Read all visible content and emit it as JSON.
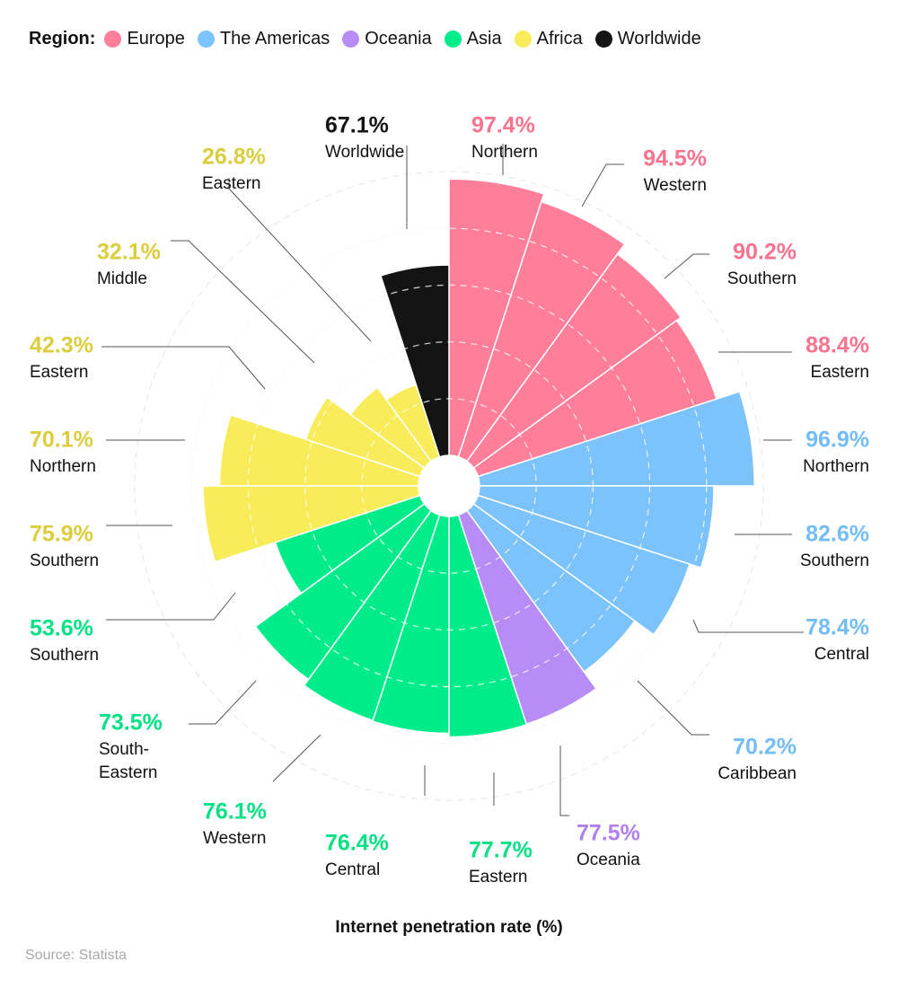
{
  "chart_data": {
    "type": "polar-bar",
    "legend_title": "Region:",
    "legend": [
      {
        "name": "Europe",
        "color": "#ff7f9a"
      },
      {
        "name": "The Americas",
        "color": "#7cc3fb"
      },
      {
        "name": "Oceania",
        "color": "#b78cf4"
      },
      {
        "name": "Asia",
        "color": "#00ec8b"
      },
      {
        "name": "Africa",
        "color": "#f9ec5a"
      },
      {
        "name": "Worldwide",
        "color": "#141414"
      }
    ],
    "label_colors": {
      "Europe": "#f9738f",
      "The Americas": "#73bdf7",
      "Oceania": "#b180f0",
      "Asia": "#00e184",
      "Africa": "#dccd3c",
      "Worldwide": "#141414"
    },
    "unit": "%",
    "categories": [
      {
        "name": "Northern",
        "region": "Europe",
        "value": 97.4,
        "value_label": "97.4%"
      },
      {
        "name": "Western",
        "region": "Europe",
        "value": 94.5,
        "value_label": "94.5%"
      },
      {
        "name": "Southern",
        "region": "Europe",
        "value": 90.2,
        "value_label": "90.2%"
      },
      {
        "name": "Eastern",
        "region": "Europe",
        "value": 88.4,
        "value_label": "88.4%"
      },
      {
        "name": "Northern",
        "region": "The Americas",
        "value": 96.9,
        "value_label": "96.9%"
      },
      {
        "name": "Southern",
        "region": "The Americas",
        "value": 82.6,
        "value_label": "82.6%"
      },
      {
        "name": "Central",
        "region": "The Americas",
        "value": 78.4,
        "value_label": "78.4%"
      },
      {
        "name": "Caribbean",
        "region": "The Americas",
        "value": 70.2,
        "value_label": "70.2%"
      },
      {
        "name": "Oceania",
        "region": "Oceania",
        "value": 77.5,
        "value_label": "77.5%"
      },
      {
        "name": "Eastern",
        "region": "Asia",
        "value": 77.7,
        "value_label": "77.7%"
      },
      {
        "name": "Central",
        "region": "Asia",
        "value": 76.4,
        "value_label": "76.4%"
      },
      {
        "name": "Western",
        "region": "Asia",
        "value": 76.1,
        "value_label": "76.1%"
      },
      {
        "name": "South-Eastern",
        "region": "Asia",
        "value": 73.5,
        "value_label": "73.5%",
        "name_lines": [
          "South-",
          "Eastern"
        ]
      },
      {
        "name": "Southern",
        "region": "Asia",
        "value": 53.6,
        "value_label": "53.6%"
      },
      {
        "name": "Southern",
        "region": "Africa",
        "value": 75.9,
        "value_label": "75.9%"
      },
      {
        "name": "Northern",
        "region": "Africa",
        "value": 70.1,
        "value_label": "70.1%"
      },
      {
        "name": "Eastern",
        "region": "Africa",
        "value": 42.3,
        "value_label": "42.3%"
      },
      {
        "name": "Middle",
        "region": "Africa",
        "value": 32.1,
        "value_label": "32.1%"
      },
      {
        "name": "Eastern",
        "region": "Africa",
        "value": 26.8,
        "value_label": "26.8%"
      },
      {
        "name": "Worldwide",
        "region": "Worldwide",
        "value": 67.1,
        "value_label": "67.1%"
      }
    ],
    "xlabel": "Internet penetration rate (%)",
    "grid": true
  },
  "source": "Source: Statista"
}
